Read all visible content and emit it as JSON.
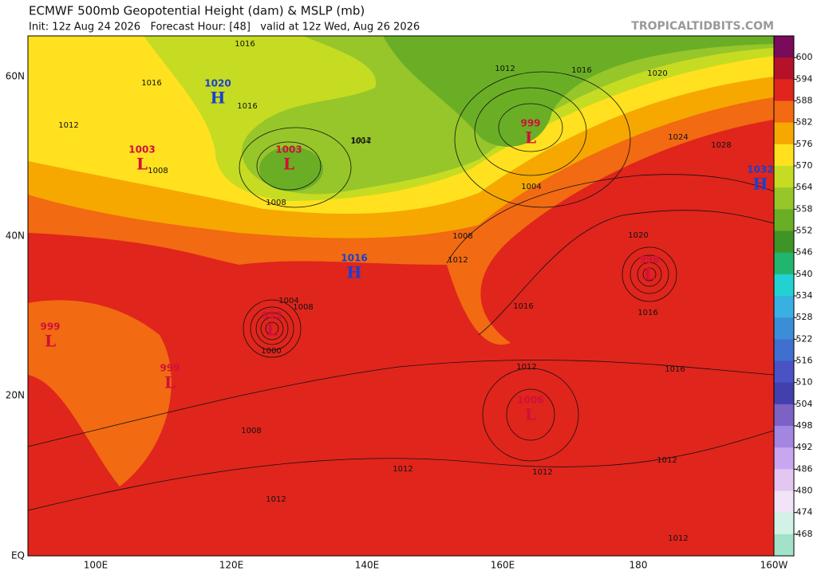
{
  "header": {
    "title": "ECMWF 500mb Geopotential Height (dam) & MSLP (mb)",
    "subtitle": "Init: 12z Aug 24 2026   Forecast Hour: [48]   valid at 12z Wed, Aug 26 2026",
    "watermark": "TROPICALTIDBITS.COM"
  },
  "map": {
    "lat_labels": [
      "60N",
      "40N",
      "20N",
      "EQ"
    ],
    "lon_labels": [
      "100E",
      "120E",
      "140E",
      "160E",
      "180",
      "160W"
    ],
    "pressure_centers": [
      {
        "letter": "H",
        "value": "1020"
      },
      {
        "letter": "L",
        "value": "1003"
      },
      {
        "letter": "L",
        "value": "1003"
      },
      {
        "letter": "L",
        "value": "999"
      },
      {
        "letter": "H",
        "value": "1032"
      },
      {
        "letter": "H",
        "value": "1016"
      },
      {
        "letter": "L",
        "value": "998"
      },
      {
        "letter": "L",
        "value": "952"
      },
      {
        "letter": "L",
        "value": "999"
      },
      {
        "letter": "L",
        "value": "999"
      },
      {
        "letter": "L",
        "value": "1006"
      }
    ],
    "isobar_labels": [
      "1016",
      "1016",
      "1016",
      "1012",
      "1012",
      "1008",
      "1008",
      "1004",
      "1016",
      "1012",
      "1004",
      "1020",
      "1024",
      "1028",
      "1008",
      "1012",
      "1020",
      "1016",
      "1016",
      "1012",
      "1016",
      "1012",
      "1012",
      "1012",
      "1008",
      "1000",
      "1004",
      "1008",
      "1012",
      "1012"
    ]
  },
  "colorbar": {
    "labels": [
      600,
      594,
      588,
      582,
      576,
      570,
      564,
      558,
      552,
      546,
      540,
      534,
      528,
      522,
      516,
      510,
      504,
      498,
      492,
      486,
      480,
      474,
      468
    ],
    "colors": [
      "#7a0a5a",
      "#b5122a",
      "#e0251c",
      "#f26a12",
      "#f6a800",
      "#ffe11f",
      "#c5dc22",
      "#97c62a",
      "#6aae26",
      "#3e9426",
      "#22b56d",
      "#22d2d2",
      "#38b0e2",
      "#3a8ed8",
      "#3f6fcf",
      "#4a52c6",
      "#4140ad",
      "#7c62c4",
      "#a385e2",
      "#c9a6f0",
      "#e4c6f2",
      "#f2e4f8",
      "#d2f2e8",
      "#a2e2c8"
    ]
  }
}
